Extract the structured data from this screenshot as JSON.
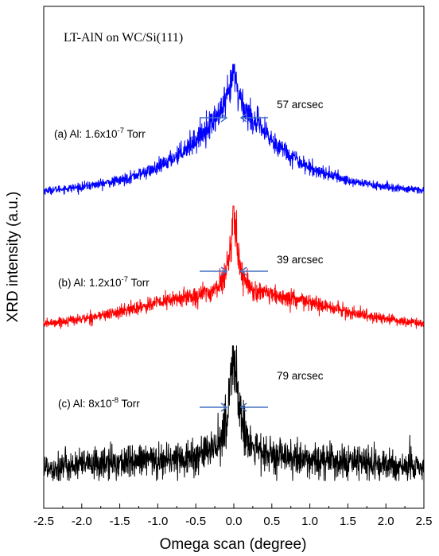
{
  "chart_data": {
    "type": "line",
    "title": "LT-AlN on WC/Si(111)",
    "xlabel": "Omega scan (degree)",
    "ylabel": "XRD intensity (a.u.)",
    "xlim": [
      -2.5,
      2.5
    ],
    "x_ticks": [
      "-2.5",
      "-2.0",
      "-1.5",
      "-1.0",
      "-0.5",
      "0.0",
      "0.5",
      "1.0",
      "1.5",
      "2.0",
      "2.5"
    ],
    "grid": false,
    "series": [
      {
        "label_prefix": "(a) Al: 1.6x10",
        "exponent": "-7",
        "label_suffix": " Torr",
        "color": "#0000ff",
        "fwhm_label": "57 arcsec",
        "fwhm_deg": 0.0158,
        "x": [
          -2.5,
          -2.0,
          -1.5,
          -1.0,
          -0.75,
          -0.5,
          -0.3,
          -0.15,
          -0.05,
          0.0,
          0.05,
          0.15,
          0.3,
          0.5,
          0.75,
          1.0,
          1.5,
          2.0,
          2.5
        ],
        "y": [
          0.02,
          0.05,
          0.1,
          0.2,
          0.3,
          0.42,
          0.55,
          0.66,
          0.8,
          1.0,
          0.8,
          0.66,
          0.55,
          0.42,
          0.3,
          0.2,
          0.1,
          0.05,
          0.02
        ]
      },
      {
        "label_prefix": "(b) Al: 1.2x10",
        "exponent": "-7",
        "label_suffix": " Torr",
        "color": "#ff0000",
        "fwhm_label": "39 arcsec",
        "fwhm_deg": 0.0108,
        "x": [
          -2.5,
          -2.0,
          -1.5,
          -1.0,
          -0.5,
          -0.25,
          -0.1,
          -0.04,
          0.0,
          0.04,
          0.1,
          0.25,
          0.5,
          1.0,
          1.5,
          2.0,
          2.5
        ],
        "y": [
          0.02,
          0.06,
          0.12,
          0.2,
          0.26,
          0.3,
          0.45,
          0.7,
          1.0,
          0.7,
          0.45,
          0.3,
          0.26,
          0.2,
          0.12,
          0.06,
          0.02
        ]
      },
      {
        "label_prefix": "(c) Al: 8x10",
        "exponent": "-8",
        "label_suffix": " Torr",
        "color": "#000000",
        "fwhm_label": "79 arcsec",
        "fwhm_deg": 0.0219,
        "x": [
          -2.5,
          -2.0,
          -1.5,
          -1.0,
          -0.5,
          -0.2,
          -0.08,
          0.0,
          0.08,
          0.2,
          0.5,
          1.0,
          1.5,
          2.0,
          2.5
        ],
        "y": [
          0.08,
          0.1,
          0.12,
          0.14,
          0.16,
          0.25,
          0.5,
          1.0,
          0.5,
          0.25,
          0.16,
          0.14,
          0.12,
          0.1,
          0.08
        ]
      }
    ]
  }
}
